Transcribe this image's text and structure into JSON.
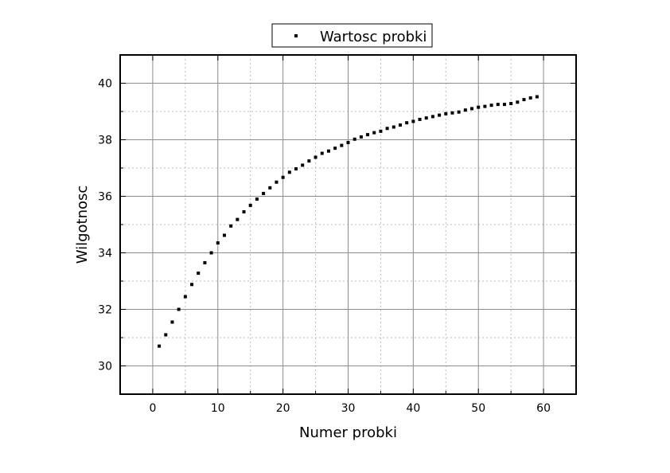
{
  "chart_data": {
    "type": "scatter",
    "xlabel": "Numer probki",
    "ylabel": "Wilgotnosc",
    "xlim": [
      -5,
      65
    ],
    "ylim": [
      29,
      41
    ],
    "xticks": [
      "0",
      "10",
      "20",
      "30",
      "40",
      "50",
      "60"
    ],
    "yticks": [
      "30",
      "32",
      "34",
      "36",
      "38",
      "40"
    ],
    "grid": true,
    "legend_position": "top-center",
    "series": [
      {
        "name": "Wartosc probki",
        "color": "#000000",
        "marker": "square-dot",
        "x": [
          1,
          2,
          3,
          4,
          5,
          6,
          7,
          8,
          9,
          10,
          11,
          12,
          13,
          14,
          15,
          16,
          17,
          18,
          19,
          20,
          21,
          22,
          23,
          24,
          25,
          26,
          27,
          28,
          29,
          30,
          31,
          32,
          33,
          34,
          35,
          36,
          37,
          38,
          39,
          40,
          41,
          42,
          43,
          44,
          45,
          46,
          47,
          48,
          49,
          50,
          51,
          52,
          53,
          54,
          55,
          56,
          57,
          58,
          59
        ],
        "y": [
          30.7,
          31.1,
          31.55,
          32.0,
          32.45,
          32.88,
          33.28,
          33.65,
          34.0,
          34.35,
          34.62,
          34.95,
          35.18,
          35.45,
          35.68,
          35.9,
          36.1,
          36.3,
          36.5,
          36.67,
          36.85,
          36.97,
          37.1,
          37.25,
          37.38,
          37.52,
          37.6,
          37.7,
          37.8,
          37.9,
          38.02,
          38.1,
          38.18,
          38.25,
          38.3,
          38.4,
          38.45,
          38.52,
          38.6,
          38.65,
          38.72,
          38.77,
          38.82,
          38.87,
          38.92,
          38.95,
          38.98,
          39.05,
          39.1,
          39.15,
          39.18,
          39.22,
          39.25,
          39.25,
          39.28,
          39.33,
          39.42,
          39.48,
          39.52
        ]
      }
    ]
  }
}
